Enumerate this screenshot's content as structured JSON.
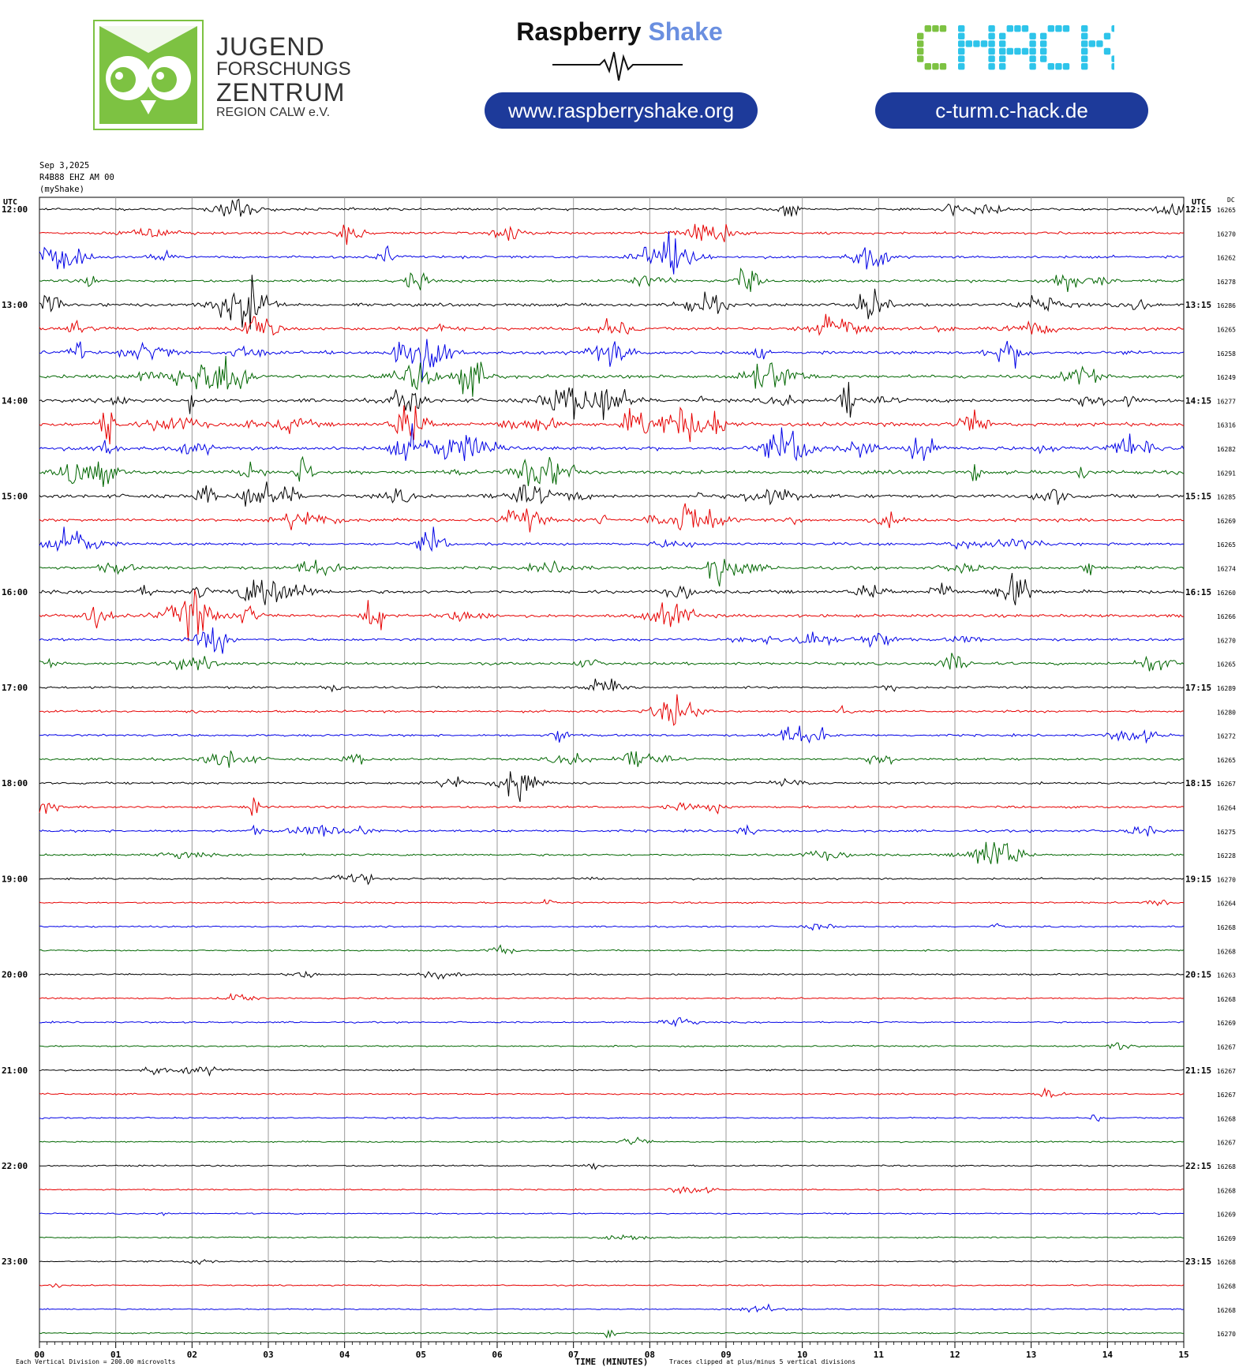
{
  "header": {
    "jfz_logo": {
      "line1": "JUGEND",
      "line2": "FORSCHUNGS",
      "line3": "ZENTRUM",
      "line4": "REGION CALW e.V.",
      "color": "#7dc242"
    },
    "raspberry_shake": {
      "title_part1": "Raspberry",
      "title_part2": "Shake",
      "url": "www.raspberryshake.org",
      "accent_color": "#6a8fe0"
    },
    "chack": {
      "logo_text": "CHACK",
      "url": "c-turm.c-hack.de",
      "green": "#7dc242",
      "cyan": "#2ec4ea"
    },
    "pill_color": "#1d3a9a"
  },
  "meta": {
    "date": "Sep 3,2025",
    "station": "R4B88 EHZ AM 00",
    "source": "(myShake)"
  },
  "chart_data": {
    "type": "line",
    "title": "",
    "xlabel": "TIME (MINUTES)",
    "ylabel": "",
    "left_axis_label": "UTC",
    "right_axis_label": "UTC",
    "dc_label": "DC",
    "xlim": [
      0,
      15
    ],
    "x_ticks": [
      "00",
      "01",
      "02",
      "03",
      "04",
      "05",
      "06",
      "07",
      "08",
      "09",
      "10",
      "11",
      "12",
      "13",
      "14",
      "15"
    ],
    "grid": true,
    "trace_colors": [
      "#000000",
      "#e60000",
      "#0000e6",
      "#006600"
    ],
    "left_hour_labels": [
      "12:00",
      "13:00",
      "14:00",
      "15:00",
      "16:00",
      "17:00",
      "18:00",
      "19:00",
      "20:00",
      "21:00",
      "22:00",
      "23:00"
    ],
    "right_hour_labels": [
      "12:15",
      "13:15",
      "14:15",
      "15:15",
      "16:15",
      "17:15",
      "18:15",
      "19:15",
      "20:15",
      "21:15",
      "22:15",
      "23:15"
    ],
    "dc_values": [
      "16265",
      "16270",
      "16262",
      "16278",
      "16286",
      "16265",
      "16258",
      "16249",
      "16277",
      "16316",
      "16282",
      "16291",
      "16285",
      "16269",
      "16265",
      "16274",
      "16260",
      "16266",
      "16270",
      "16265",
      "16289",
      "16280",
      "16272",
      "16265",
      "16267",
      "16264",
      "16275",
      "16228",
      "16270",
      "16264",
      "16268",
      "16268",
      "16263",
      "16268",
      "16269",
      "16267",
      "16267",
      "16267",
      "16268",
      "16267",
      "16268",
      "16268",
      "16269",
      "16269",
      "16268",
      "16268",
      "16268",
      "16270"
    ],
    "activity_levels": [
      0.35,
      0.4,
      0.4,
      0.45,
      0.55,
      0.6,
      0.6,
      0.65,
      0.75,
      0.8,
      0.75,
      0.7,
      0.7,
      0.55,
      0.45,
      0.5,
      0.6,
      0.55,
      0.45,
      0.45,
      0.3,
      0.3,
      0.3,
      0.35,
      0.3,
      0.3,
      0.35,
      0.3,
      0.2,
      0.12,
      0.12,
      0.1,
      0.12,
      0.1,
      0.1,
      0.1,
      0.12,
      0.1,
      0.08,
      0.08,
      0.1,
      0.06,
      0.05,
      0.06,
      0.08,
      0.05,
      0.05,
      0.05
    ],
    "footer_left": "Each Vertical Division =  200.00 microvolts",
    "footer_right": "Traces clipped at plus/minus 5 vertical divisions"
  }
}
